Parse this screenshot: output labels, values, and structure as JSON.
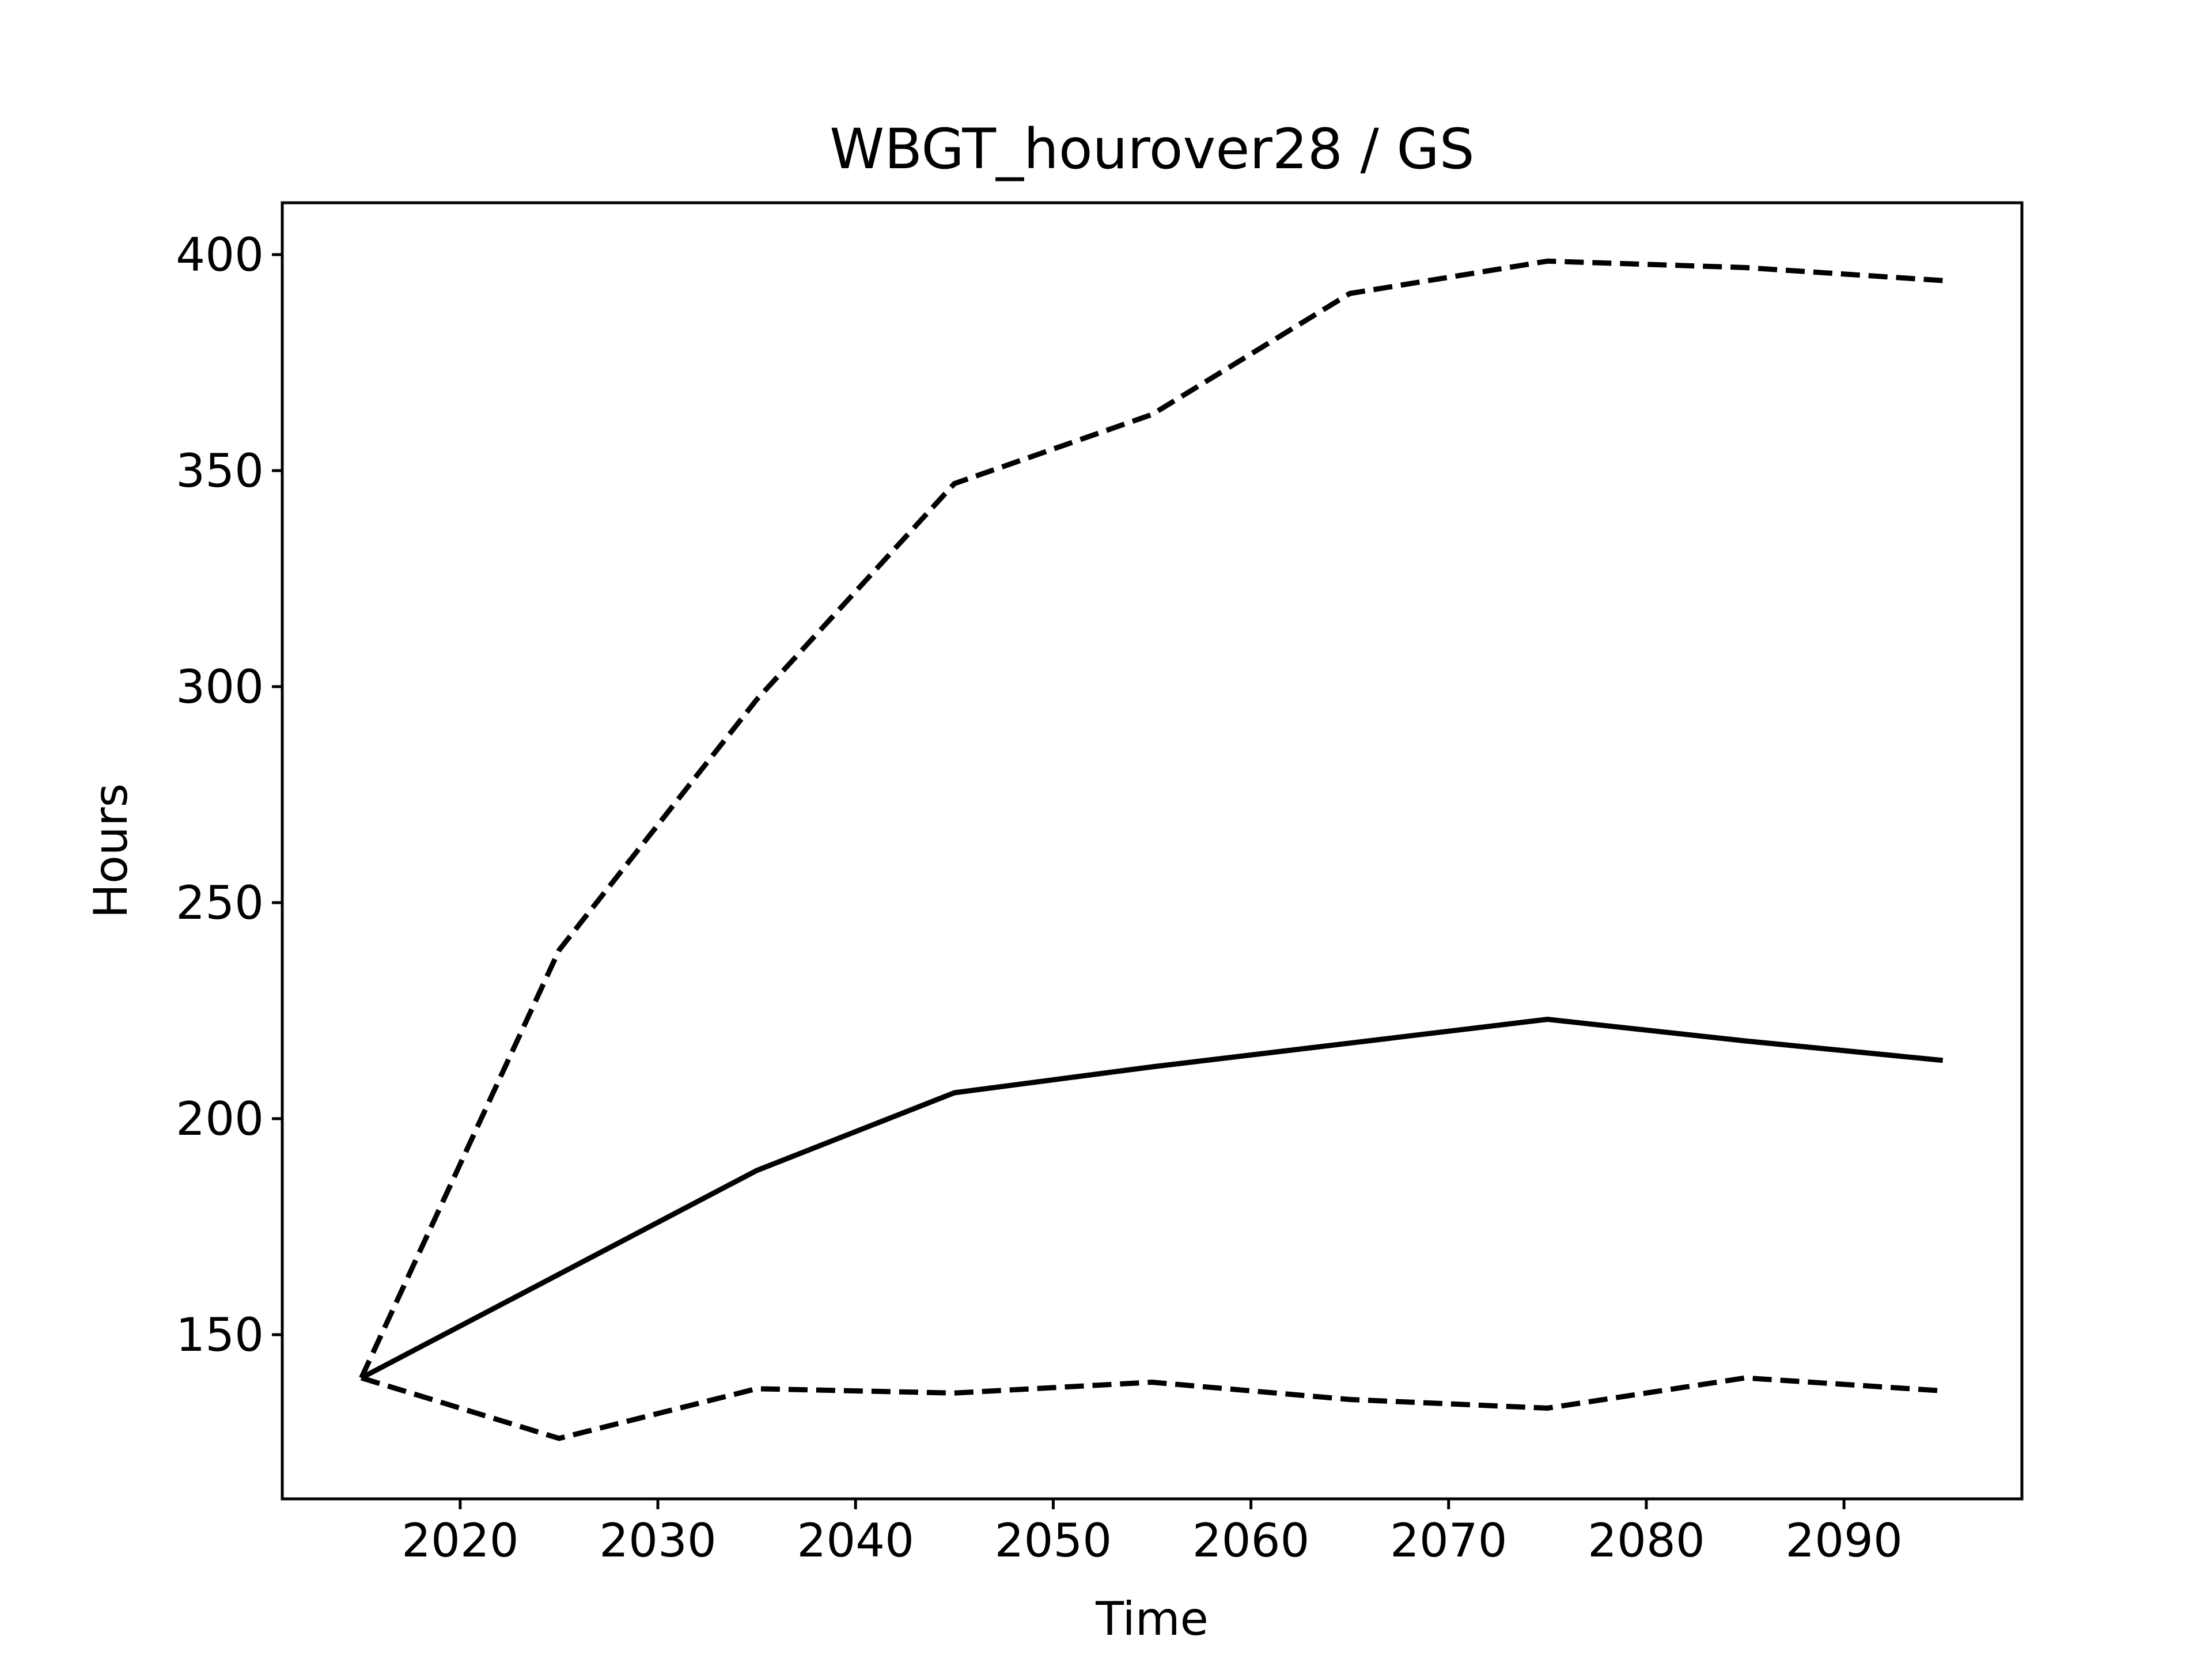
{
  "chart_data": {
    "type": "line",
    "title": "WBGT_hourover28 / GS",
    "xlabel": "Time",
    "ylabel": "Hours",
    "xlim": [
      2011,
      2099
    ],
    "ylim": [
      112,
      412
    ],
    "x_ticks": [
      2020,
      2030,
      2040,
      2050,
      2060,
      2070,
      2080,
      2090
    ],
    "y_ticks": [
      150,
      200,
      250,
      300,
      350,
      400
    ],
    "grid": false,
    "legend": "none",
    "x": [
      2015,
      2025,
      2035,
      2045,
      2055,
      2065,
      2075,
      2085,
      2095
    ],
    "series": [
      {
        "values": [
          140,
          239,
          297,
          347,
          363,
          391,
          398.5,
          397,
          394
        ],
        "style": "dashed",
        "color": "#000000"
      },
      {
        "values": [
          140,
          164,
          188,
          206,
          212,
          217.5,
          223,
          218,
          213.5
        ],
        "style": "solid",
        "color": "#000000"
      },
      {
        "values": [
          140,
          126,
          137.5,
          136.5,
          139,
          135,
          133,
          140,
          137
        ],
        "style": "dashed",
        "color": "#000000"
      }
    ]
  }
}
